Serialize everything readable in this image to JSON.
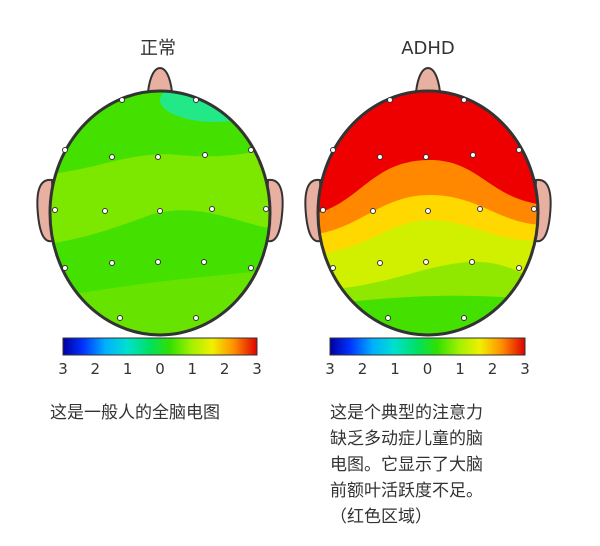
{
  "panels": [
    {
      "title": "正常",
      "colorbar_ticks": [
        "3",
        "2",
        "1",
        "0",
        "1",
        "2",
        "3"
      ],
      "caption": [
        "这是一般人的全脑电图"
      ]
    },
    {
      "title": "ADHD",
      "colorbar_ticks": [
        "3",
        "2",
        "1",
        "0",
        "1",
        "2",
        "3"
      ],
      "caption": [
        "这是个典型的注意力",
        "缺乏多动症儿童的脑",
        "电图。它显示了大脑",
        "前额叶活跃度不足。",
        "（红色区域）"
      ]
    }
  ]
}
